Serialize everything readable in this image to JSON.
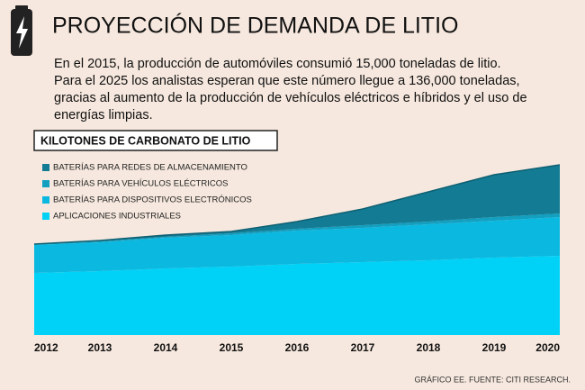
{
  "header": {
    "title": "PROYECCIÓN DE DEMANDA DE LITIO",
    "lines": [
      "En el 2015, la producción de automóviles consumió 15,000 toneladas de litio.",
      "Para el 2025 los analistas esperan que este número llegue a 136,000 toneladas,",
      "gracias al aumento de la producción de vehículos eléctricos e híbridos y el uso de",
      "energías limpias."
    ]
  },
  "chart_data": {
    "type": "stacked-area",
    "title": "KILOTONES DE CARBONATO DE LITIO",
    "categories": [
      "2012",
      "2013",
      "2014",
      "2015",
      "2016",
      "2017",
      "2018",
      "2019",
      "2020"
    ],
    "ylim": [
      0,
      200
    ],
    "series": [
      {
        "name": "APLICACIONES INDUSTRIALES",
        "color": "#00d2f7",
        "values": [
          69,
          71,
          74,
          76,
          79,
          81,
          83,
          86,
          88
        ]
      },
      {
        "name": "BATERÍAS PARA DISPOSITIVOS ELECTRÓNICOS",
        "color": "#0bb8e0",
        "values": [
          31,
          32,
          34,
          35,
          37,
          38,
          40,
          41,
          43
        ]
      },
      {
        "name": "BATERÍAS PARA VEHÍCULOS ELÉCTRICOS",
        "color": "#129fc0",
        "values": [
          1,
          1,
          1,
          2,
          2,
          3,
          3,
          4,
          4
        ]
      },
      {
        "name": "BATERÍAS PARA REDES DE ALMACENAMIENTO",
        "color": "#137c94",
        "values": [
          0,
          1,
          2,
          2,
          8,
          18,
          33,
          47,
          54
        ]
      }
    ]
  },
  "source": "GRÁFICO EE. FUENTE: CITI RESEARCH."
}
